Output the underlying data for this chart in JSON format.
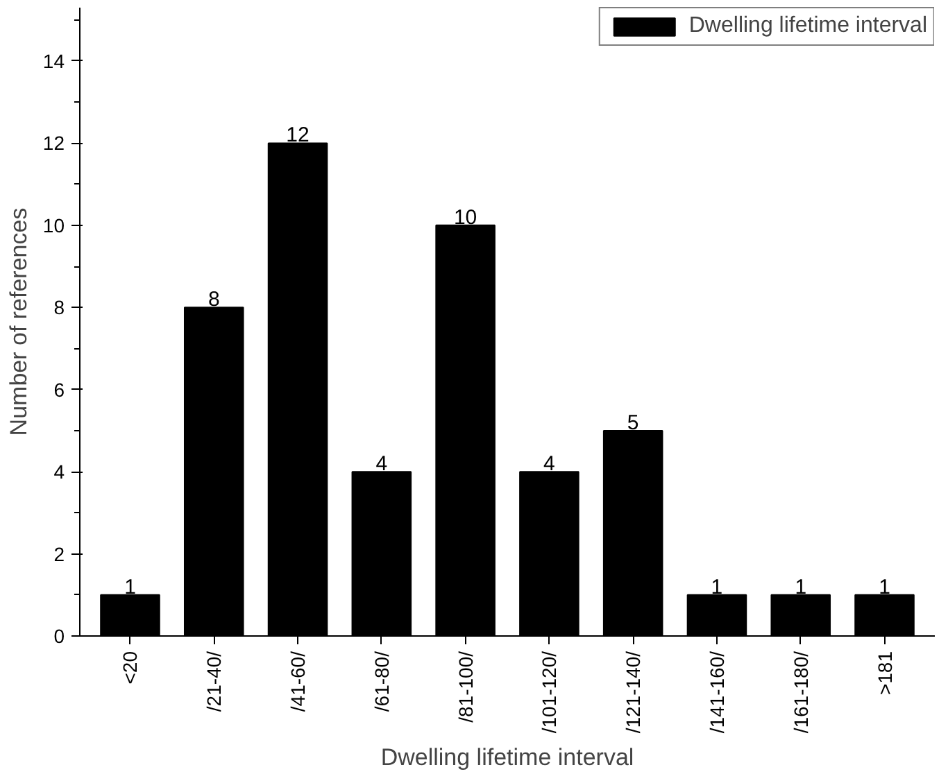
{
  "chart_data": {
    "type": "bar",
    "xlabel": "Dwelling lifetime interval",
    "ylabel": "Number of references",
    "categories": [
      "<20",
      "/21-40/",
      "/41-60/",
      "/61-80/",
      "/81-100/",
      "/101-120/",
      "/121-140/",
      "/141-160/",
      "/161-180/",
      ">181"
    ],
    "series": [
      {
        "name": "Dwelling lifetime interval",
        "color": "#000000",
        "values": [
          1,
          8,
          12,
          4,
          10,
          4,
          5,
          1,
          1,
          1
        ]
      }
    ],
    "ylim": [
      0,
      15.3
    ],
    "yticks": [
      0,
      2,
      4,
      6,
      8,
      10,
      12,
      14
    ],
    "data_labels": true,
    "legend": "top right",
    "grid": false
  }
}
